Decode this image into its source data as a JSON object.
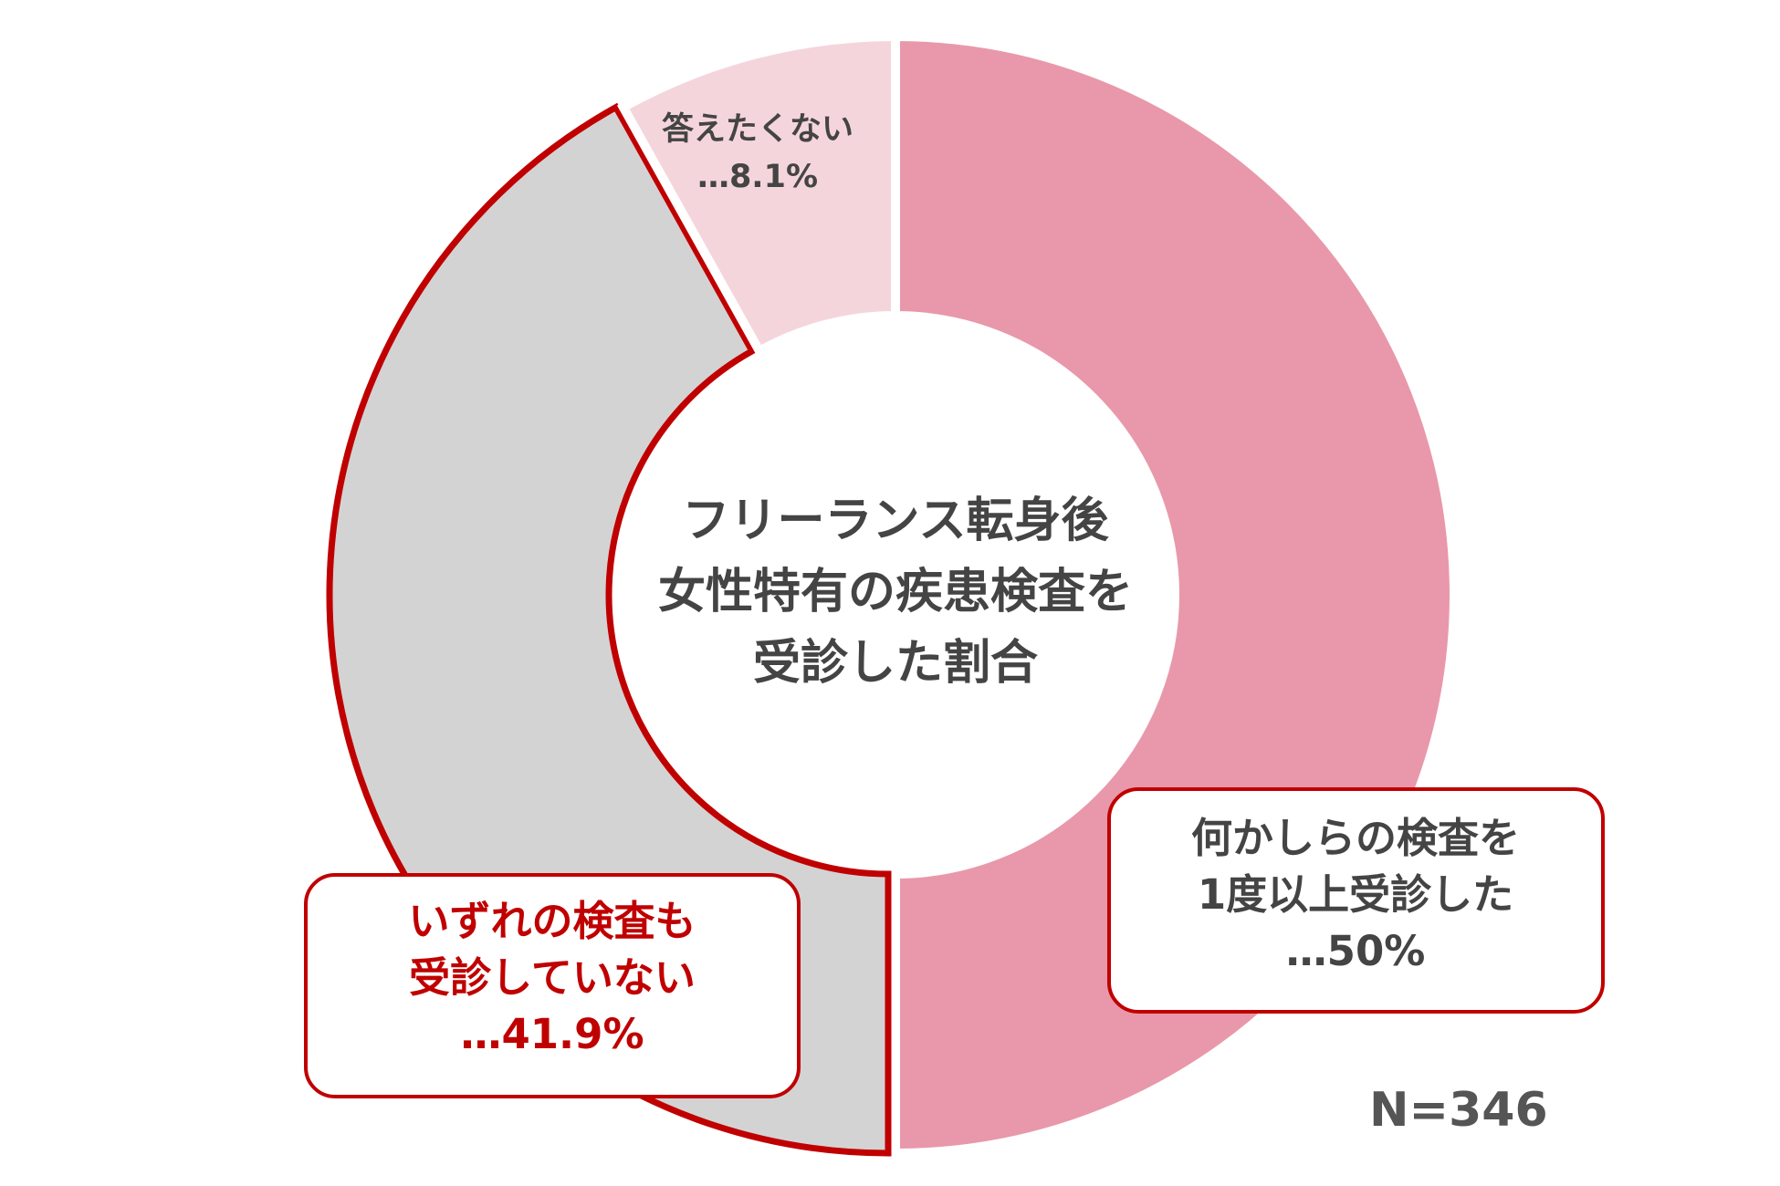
{
  "chart_data": {
    "type": "donut",
    "title": [
      "フリーランス転身後",
      "女性特有の疾患検査を",
      "受診した割合"
    ],
    "categories": [
      [
        "何かしらの検査を",
        "1度以上受診した"
      ],
      [
        "いずれの検査も",
        "受診していない"
      ],
      [
        "答えたくない"
      ]
    ],
    "values": [
      50,
      41.9,
      8.1
    ],
    "value_labels": [
      "…50%",
      "…41.9%",
      "…8.1%"
    ],
    "colors": [
      "#e898aa",
      "#d3d3d3",
      "#f5d5dc"
    ],
    "highlight_border": "#c00000",
    "annotation": "N=346"
  }
}
